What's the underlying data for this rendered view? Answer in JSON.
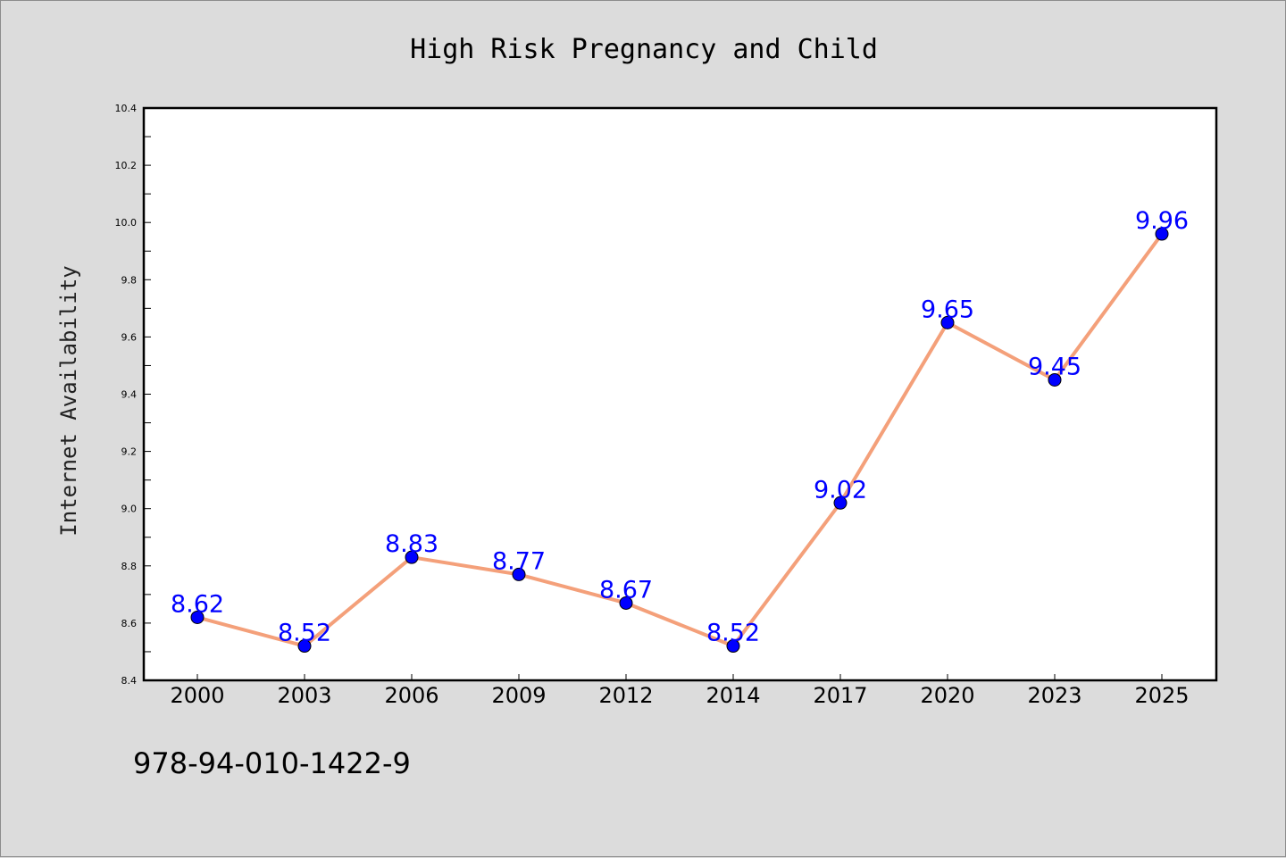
{
  "chart_data": {
    "type": "line",
    "title": "High Risk Pregnancy and Child",
    "xlabel": "",
    "ylabel": "Internet Availability",
    "categories": [
      "2000",
      "2003",
      "2006",
      "2009",
      "2012",
      "2014",
      "2017",
      "2020",
      "2023",
      "2025"
    ],
    "series": [
      {
        "values": [
          8.62,
          8.52,
          8.83,
          8.77,
          8.67,
          8.52,
          9.02,
          9.65,
          9.45,
          9.96
        ],
        "labels": [
          "8.62",
          "8.52",
          "8.83",
          "8.77",
          "8.67",
          "8.52",
          "9.02",
          "9.65",
          "9.45",
          "9.96"
        ],
        "line_color": "#f4a07a",
        "marker_color": "#0000ff"
      }
    ],
    "ylim": [
      8.4,
      10.4
    ],
    "yticks": [
      "8.4",
      "8.6",
      "8.8",
      "9.0",
      "9.2",
      "9.4",
      "9.6",
      "9.8",
      "10.0",
      "10.2",
      "10.4"
    ],
    "grid": false,
    "legend": "none"
  },
  "footer": {
    "isbn": "978-94-010-1422-9"
  }
}
